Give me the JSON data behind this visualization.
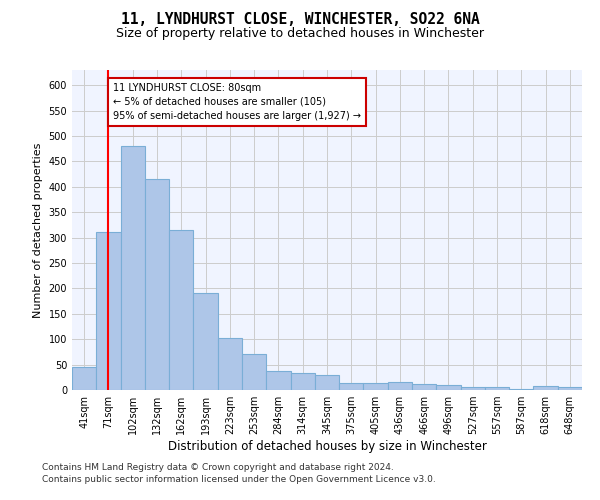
{
  "title": "11, LYNDHURST CLOSE, WINCHESTER, SO22 6NA",
  "subtitle": "Size of property relative to detached houses in Winchester",
  "xlabel": "Distribution of detached houses by size in Winchester",
  "ylabel": "Number of detached properties",
  "categories": [
    "41sqm",
    "71sqm",
    "102sqm",
    "132sqm",
    "162sqm",
    "193sqm",
    "223sqm",
    "253sqm",
    "284sqm",
    "314sqm",
    "345sqm",
    "375sqm",
    "405sqm",
    "436sqm",
    "466sqm",
    "496sqm",
    "527sqm",
    "557sqm",
    "587sqm",
    "618sqm",
    "648sqm"
  ],
  "values": [
    45,
    312,
    480,
    415,
    315,
    190,
    103,
    70,
    38,
    33,
    30,
    14,
    13,
    15,
    12,
    10,
    6,
    5,
    2,
    7,
    6
  ],
  "bar_color": "#aec6e8",
  "bar_edge_color": "#7aaed6",
  "bar_linewidth": 0.8,
  "red_line_x": 1,
  "annotation_text": "11 LYNDHURST CLOSE: 80sqm\n← 5% of detached houses are smaller (105)\n95% of semi-detached houses are larger (1,927) →",
  "annotation_box_color": "#ffffff",
  "annotation_box_edge_color": "#cc0000",
  "ylim": [
    0,
    630
  ],
  "yticks": [
    0,
    50,
    100,
    150,
    200,
    250,
    300,
    350,
    400,
    450,
    500,
    550,
    600
  ],
  "grid_color": "#cccccc",
  "background_color": "#f0f4ff",
  "footer_line1": "Contains HM Land Registry data © Crown copyright and database right 2024.",
  "footer_line2": "Contains public sector information licensed under the Open Government Licence v3.0.",
  "title_fontsize": 10.5,
  "subtitle_fontsize": 9,
  "xlabel_fontsize": 8.5,
  "ylabel_fontsize": 8,
  "tick_fontsize": 7,
  "footer_fontsize": 6.5
}
